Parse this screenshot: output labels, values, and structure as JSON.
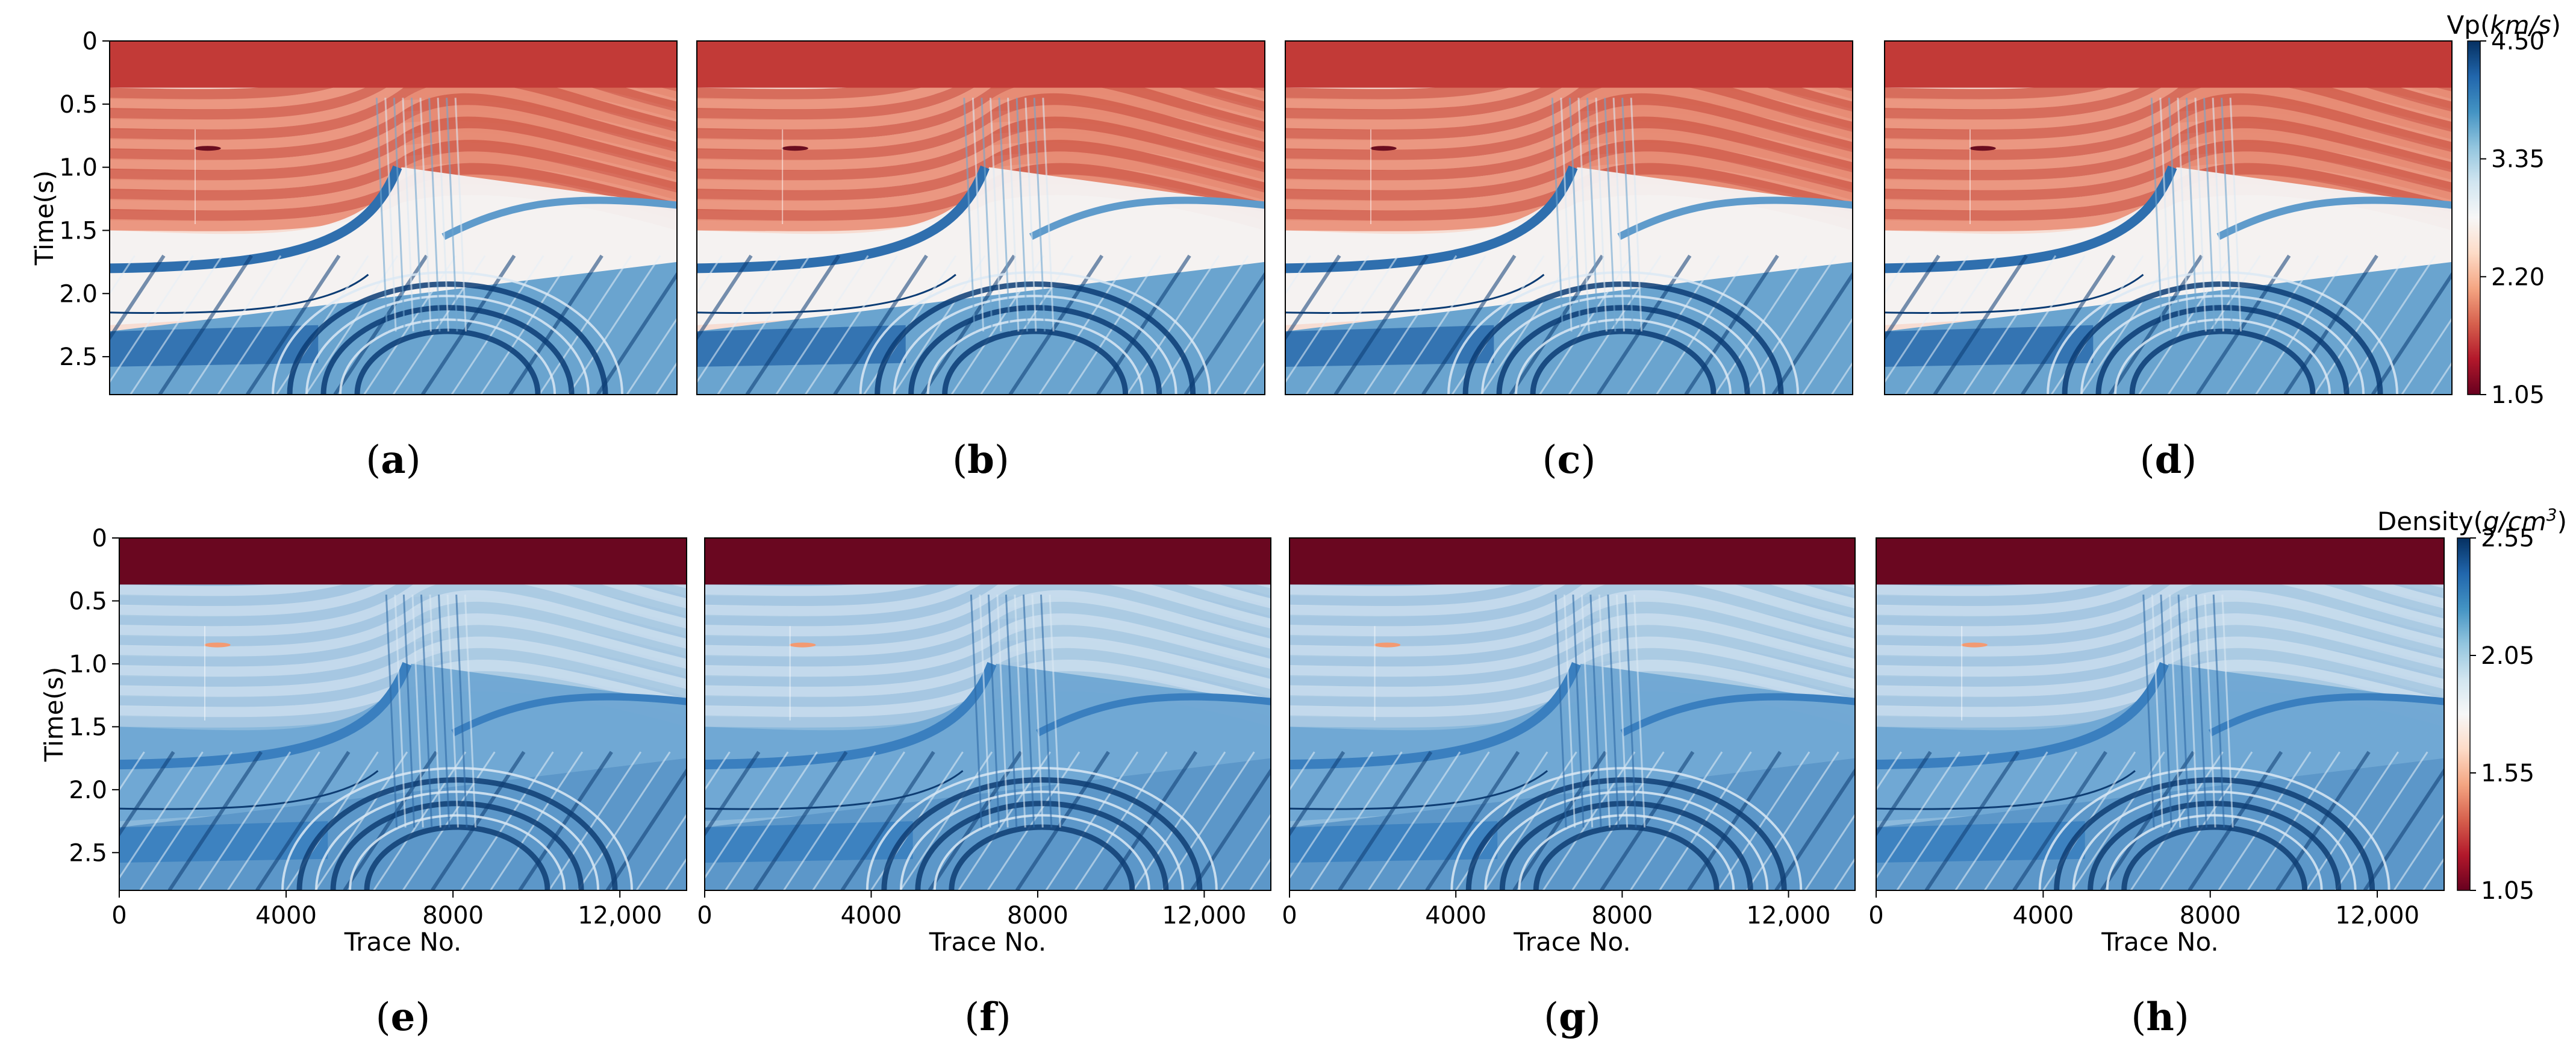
{
  "figure": {
    "colormap": "RdBu",
    "colormap_stops": [
      "#67001f",
      "#b2182b",
      "#d6604d",
      "#f4a582",
      "#fddbc7",
      "#f7f7f7",
      "#d1e5f0",
      "#92c5de",
      "#4393c3",
      "#2166ac",
      "#053061"
    ]
  },
  "chart_data": [
    {
      "type": "heatmap",
      "group": "vp",
      "caption_parts": {
        "open": "(",
        "letter": "a",
        "close": ")"
      },
      "ylabel": "Time(s)",
      "xlabel": "",
      "ylim": [
        2.8,
        0
      ],
      "xlim": [
        0,
        13600
      ],
      "yticks": [
        "0",
        "0.5",
        "1.0",
        "1.5",
        "2.0",
        "2.5"
      ],
      "ytick_values": [
        0,
        0.5,
        1.0,
        1.5,
        2.0,
        2.5
      ],
      "show_yticks": true,
      "show_xticks": false,
      "water_bottom_time": 0.37
    },
    {
      "type": "heatmap",
      "group": "vp",
      "caption_parts": {
        "open": "(",
        "letter": "b",
        "close": ")"
      },
      "ylabel": "",
      "xlabel": "",
      "ylim": [
        2.8,
        0
      ],
      "xlim": [
        0,
        13600
      ],
      "show_yticks": false,
      "show_xticks": false,
      "water_bottom_time": 0.37
    },
    {
      "type": "heatmap",
      "group": "vp",
      "caption_parts": {
        "open": "(",
        "letter": "c",
        "close": ")"
      },
      "ylabel": "",
      "xlabel": "",
      "ylim": [
        2.8,
        0
      ],
      "xlim": [
        0,
        13600
      ],
      "show_yticks": false,
      "show_xticks": false,
      "water_bottom_time": 0.37
    },
    {
      "type": "heatmap",
      "group": "vp",
      "caption_parts": {
        "open": "(",
        "letter": "d",
        "close": ")"
      },
      "ylabel": "",
      "xlabel": "",
      "ylim": [
        2.8,
        0
      ],
      "xlim": [
        0,
        13600
      ],
      "show_yticks": false,
      "show_xticks": false,
      "water_bottom_time": 0.37
    },
    {
      "type": "heatmap",
      "group": "density",
      "caption_parts": {
        "open": "(",
        "letter": "e",
        "close": ")"
      },
      "ylabel": "Time(s)",
      "xlabel": "Trace No.",
      "ylim": [
        2.8,
        0
      ],
      "xlim": [
        0,
        13600
      ],
      "yticks": [
        "0",
        "0.5",
        "1.0",
        "1.5",
        "2.0",
        "2.5"
      ],
      "ytick_values": [
        0,
        0.5,
        1.0,
        1.5,
        2.0,
        2.5
      ],
      "xticks": [
        "0",
        "4000",
        "8000",
        "12,000"
      ],
      "xtick_values": [
        0,
        4000,
        8000,
        12000
      ],
      "show_yticks": true,
      "show_xticks": true,
      "water_bottom_time": 0.37
    },
    {
      "type": "heatmap",
      "group": "density",
      "caption_parts": {
        "open": "(",
        "letter": "f",
        "close": ")"
      },
      "ylabel": "",
      "xlabel": "Trace No.",
      "ylim": [
        2.8,
        0
      ],
      "xlim": [
        0,
        13600
      ],
      "xticks": [
        "0",
        "4000",
        "8000",
        "12,000"
      ],
      "xtick_values": [
        0,
        4000,
        8000,
        12000
      ],
      "show_yticks": false,
      "show_xticks": true,
      "water_bottom_time": 0.37
    },
    {
      "type": "heatmap",
      "group": "density",
      "caption_parts": {
        "open": "(",
        "letter": "g",
        "close": ")"
      },
      "ylabel": "",
      "xlabel": "Trace No.",
      "ylim": [
        2.8,
        0
      ],
      "xlim": [
        0,
        13600
      ],
      "xticks": [
        "0",
        "4000",
        "8000",
        "12,000"
      ],
      "xtick_values": [
        0,
        4000,
        8000,
        12000
      ],
      "show_yticks": false,
      "show_xticks": true,
      "water_bottom_time": 0.37
    },
    {
      "type": "heatmap",
      "group": "density",
      "caption_parts": {
        "open": "(",
        "letter": "h",
        "close": ")"
      },
      "ylabel": "",
      "xlabel": "Trace No.",
      "ylim": [
        2.8,
        0
      ],
      "xlim": [
        0,
        13600
      ],
      "xticks": [
        "0",
        "4000",
        "8000",
        "12,000"
      ],
      "xtick_values": [
        0,
        4000,
        8000,
        12000
      ],
      "show_yticks": false,
      "show_xticks": true,
      "water_bottom_time": 0.37
    }
  ],
  "colorbars": {
    "vp": {
      "title_prefix": "Vp(",
      "title_unit": "km/s",
      "title_suffix": ")",
      "ticks": [
        "4.50",
        "3.35",
        "2.20",
        "1.05"
      ],
      "tick_values": [
        4.5,
        3.35,
        2.2,
        1.05
      ],
      "range": [
        1.05,
        4.5
      ]
    },
    "density": {
      "title_prefix": "Density(",
      "title_unit": "g/cm",
      "title_sup": "3",
      "title_suffix": ")",
      "ticks": [
        "2.55",
        "2.05",
        "1.55",
        "1.05"
      ],
      "tick_values": [
        2.55,
        2.05,
        1.55,
        1.05
      ],
      "range": [
        1.05,
        2.55
      ]
    }
  }
}
